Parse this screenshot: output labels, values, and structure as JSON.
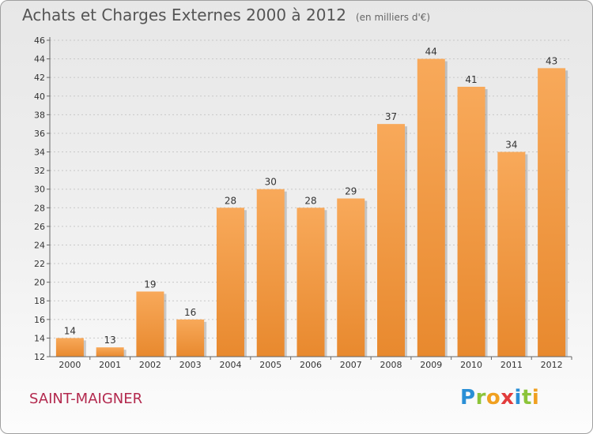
{
  "chart_data": {
    "type": "bar",
    "title": "Achats et Charges Externes 2000 à 2012",
    "subtitle": "(en milliers d'€)",
    "categories": [
      "2000",
      "2001",
      "2002",
      "2003",
      "2004",
      "2005",
      "2006",
      "2007",
      "2008",
      "2009",
      "2010",
      "2011",
      "2012"
    ],
    "values": [
      14,
      13,
      19,
      16,
      28,
      30,
      28,
      29,
      37,
      44,
      41,
      34,
      43
    ],
    "ylim": [
      12,
      46
    ],
    "yticks": [
      12,
      14,
      16,
      18,
      20,
      22,
      24,
      26,
      28,
      30,
      32,
      34,
      36,
      38,
      40,
      42,
      44,
      46
    ],
    "grid": true,
    "bar_color": "#e8892e",
    "bar_highlight": "#f8a95a"
  },
  "place_name": "SAINT-MAIGNER",
  "logo": {
    "letters": [
      {
        "ch": "P",
        "color": "#2a8fd6"
      },
      {
        "ch": "r",
        "color": "#8cc43a"
      },
      {
        "ch": "o",
        "color": "#f0a020"
      },
      {
        "ch": "x",
        "color": "#e23c3c"
      },
      {
        "ch": "i",
        "color": "#2a8fd6"
      },
      {
        "ch": "t",
        "color": "#8cc43a"
      },
      {
        "ch": "i",
        "color": "#f0a020"
      }
    ]
  }
}
